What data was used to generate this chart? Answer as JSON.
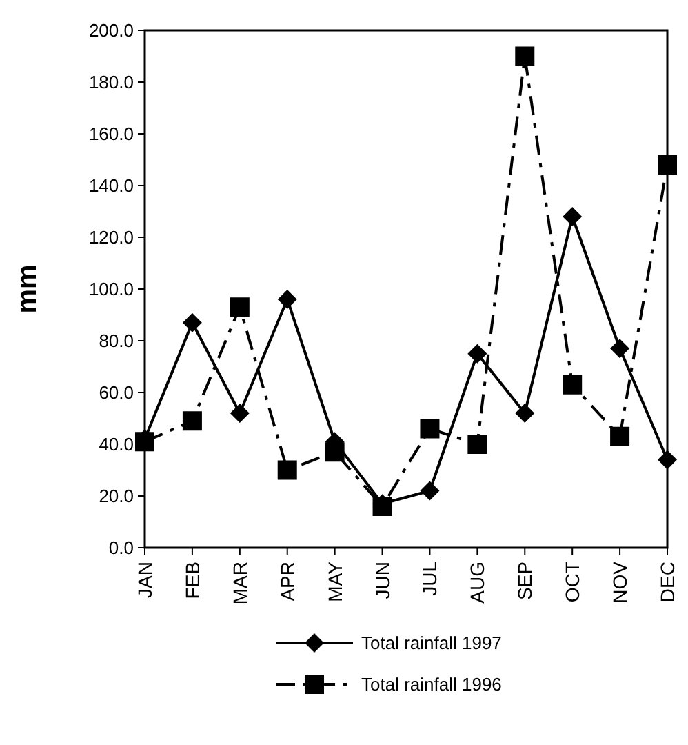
{
  "chart_data": {
    "type": "line",
    "ylabel": "mm",
    "categories": [
      "JAN",
      "FEB",
      "MAR",
      "APR",
      "MAY",
      "JUN",
      "JUL",
      "AUG",
      "SEP",
      "OCT",
      "NOV",
      "DEC"
    ],
    "series": [
      {
        "name": "Total rainfall 1997",
        "color": "#000000",
        "marker": "diamond",
        "line_style": "solid",
        "values": [
          42,
          87,
          52,
          96,
          41,
          17,
          22,
          75,
          52,
          128,
          77,
          34
        ]
      },
      {
        "name": "Total rainfall 1996",
        "color": "#000000",
        "marker": "square",
        "line_style": "dashed",
        "values": [
          41,
          49,
          93,
          30,
          37,
          16,
          46,
          40,
          190,
          63,
          43,
          148
        ]
      }
    ],
    "ylim": [
      0,
      200
    ],
    "yticks": [
      {
        "value": 0,
        "label": "0.0"
      },
      {
        "value": 20,
        "label": "20.0"
      },
      {
        "value": 40,
        "label": "40.0"
      },
      {
        "value": 60,
        "label": "60.0"
      },
      {
        "value": 80,
        "label": "80.0"
      },
      {
        "value": 100,
        "label": "100.0"
      },
      {
        "value": 120,
        "label": "120.0"
      },
      {
        "value": 140,
        "label": "140.0"
      },
      {
        "value": 160,
        "label": "160.0"
      },
      {
        "value": 180,
        "label": "180.0"
      },
      {
        "value": 200,
        "label": "200.0"
      }
    ],
    "grid": false,
    "legend": "bottom"
  }
}
